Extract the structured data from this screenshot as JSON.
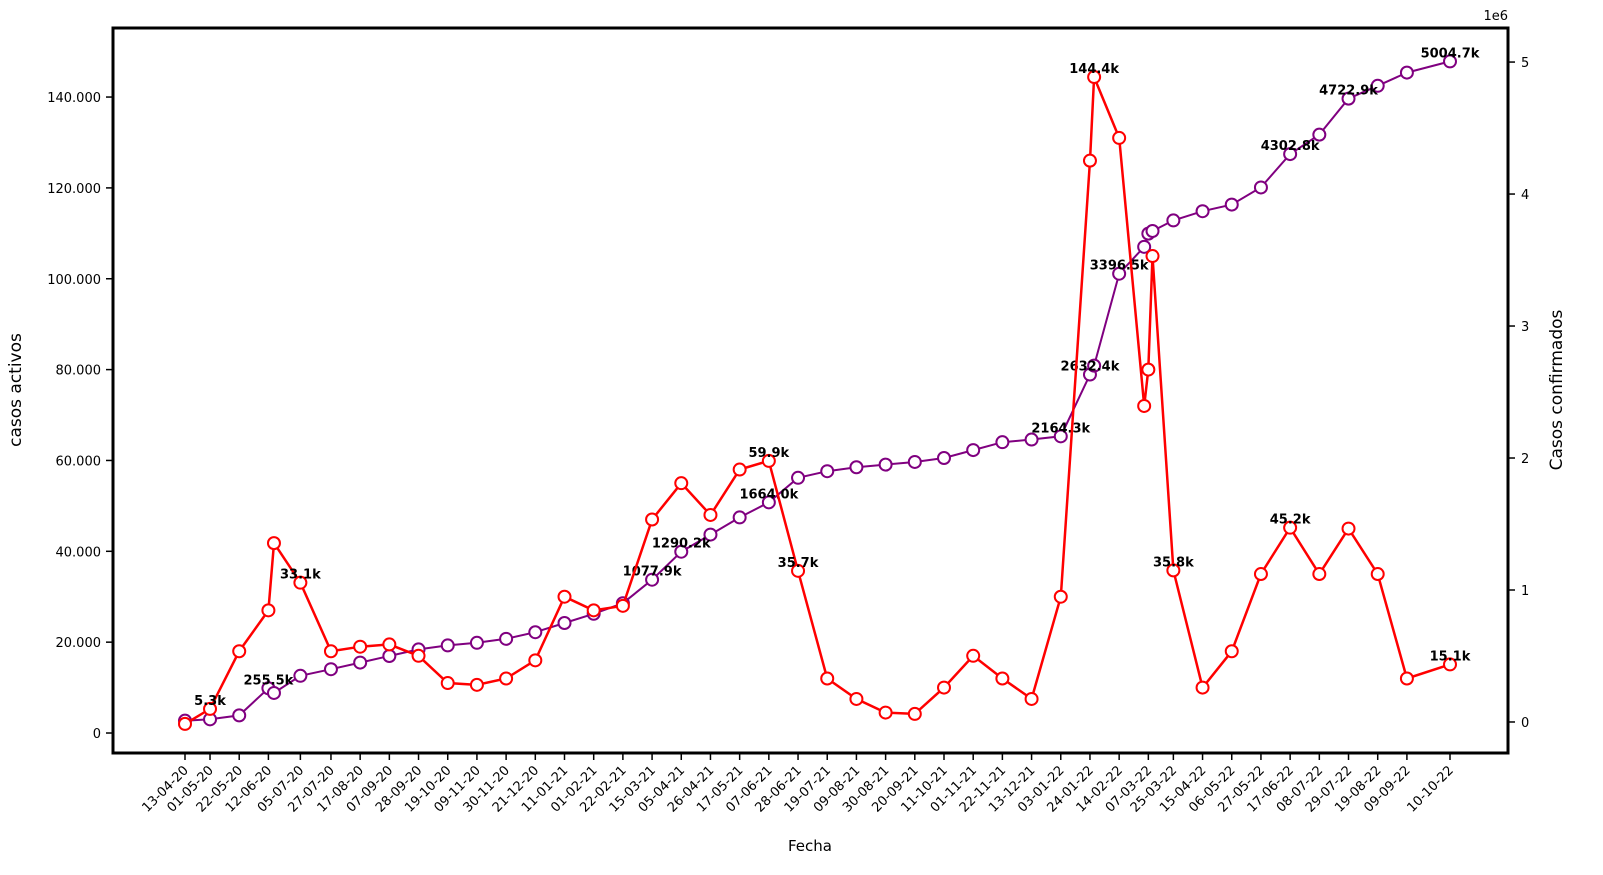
{
  "chart_data": {
    "type": "line",
    "x_label": "Fecha",
    "y_label": "casos activos",
    "y2_label": "Casos confirmados",
    "y2_offset_label": "1e6",
    "x": [
      "13-04-20",
      "01-05-20",
      "22-05-20",
      "12-06-20",
      "16-06-20",
      "05-07-20",
      "27-07-20",
      "17-08-20",
      "07-09-20",
      "28-09-20",
      "19-10-20",
      "09-11-20",
      "30-11-20",
      "21-12-20",
      "11-01-21",
      "01-02-21",
      "22-02-21",
      "15-03-21",
      "05-04-21",
      "26-04-21",
      "17-05-21",
      "07-06-21",
      "28-06-21",
      "19-07-21",
      "09-08-21",
      "30-08-21",
      "20-09-21",
      "11-10-21",
      "01-11-21",
      "22-11-21",
      "13-12-21",
      "03-01-22",
      "24-01-22",
      "27-01-22",
      "14-02-22",
      "04-03-22",
      "07-03-22",
      "10-03-22",
      "25-03-22",
      "15-04-22",
      "06-05-22",
      "27-05-22",
      "17-06-22",
      "08-07-22",
      "29-07-22",
      "19-08-22",
      "09-09-22",
      "10-10-22"
    ],
    "series": [
      {
        "name": "casos activos",
        "color": "#ff0000",
        "axis": "y",
        "values": [
          2000,
          5300,
          18000,
          27000,
          41800,
          33100,
          18000,
          19000,
          19500,
          17000,
          11000,
          10600,
          12000,
          16000,
          30000,
          27000,
          28000,
          47000,
          55000,
          48000,
          58000,
          59900,
          35700,
          12000,
          7500,
          4500,
          4200,
          10000,
          17000,
          12000,
          7500,
          30000,
          126000,
          144400,
          131000,
          72000,
          80000,
          105000,
          35800,
          10000,
          18000,
          35000,
          45200,
          35000,
          45000,
          35000,
          12000,
          15100
        ],
        "value_labels": [
          null,
          "5.3k",
          null,
          null,
          null,
          "33.1k",
          null,
          null,
          null,
          null,
          null,
          null,
          null,
          null,
          null,
          null,
          null,
          null,
          null,
          null,
          null,
          "59.9k",
          "35.7k",
          null,
          null,
          null,
          null,
          null,
          null,
          null,
          null,
          null,
          null,
          "144.4k",
          null,
          null,
          null,
          null,
          "35.8k",
          null,
          null,
          null,
          "45.2k",
          null,
          null,
          null,
          null,
          "15.1k"
        ]
      },
      {
        "name": "Casos confirmados",
        "color": "#800080",
        "axis": "y2",
        "values": [
          0.01,
          0.02,
          0.05,
          0.2555,
          0.22,
          0.35,
          0.4,
          0.45,
          0.5,
          0.55,
          0.58,
          0.6,
          0.63,
          0.68,
          0.75,
          0.82,
          0.9,
          1.0779,
          1.2902,
          1.42,
          1.55,
          1.664,
          1.85,
          1.9,
          1.93,
          1.95,
          1.97,
          2.0,
          2.06,
          2.12,
          2.14,
          2.1643,
          2.6324,
          2.7,
          3.3965,
          3.6,
          3.7,
          3.72,
          3.8,
          3.87,
          3.92,
          4.05,
          4.3028,
          4.45,
          4.7229,
          4.82,
          4.92,
          5.0047
        ],
        "value_labels": [
          null,
          null,
          null,
          "255.5k",
          null,
          null,
          null,
          null,
          null,
          null,
          null,
          null,
          null,
          null,
          null,
          null,
          null,
          "1077.9k",
          "1290.2k",
          null,
          null,
          "1664.0k",
          null,
          null,
          null,
          null,
          null,
          null,
          null,
          null,
          null,
          "2164.3k",
          "2632.4k",
          null,
          "3396.5k",
          null,
          null,
          null,
          null,
          null,
          null,
          null,
          "4302.8k",
          null,
          "4722.9k",
          null,
          null,
          "5004.7k"
        ]
      }
    ],
    "xticks": [
      "13-04-20",
      "01-05-20",
      "22-05-20",
      "12-06-20",
      "05-07-20",
      "27-07-20",
      "17-08-20",
      "07-09-20",
      "28-09-20",
      "19-10-20",
      "09-11-20",
      "30-11-20",
      "21-12-20",
      "11-01-21",
      "01-02-21",
      "22-02-21",
      "15-03-21",
      "05-04-21",
      "26-04-21",
      "17-05-21",
      "07-06-21",
      "28-06-21",
      "19-07-21",
      "09-08-21",
      "30-08-21",
      "20-09-21",
      "11-10-21",
      "01-11-21",
      "22-11-21",
      "13-12-21",
      "03-01-22",
      "24-01-22",
      "14-02-22",
      "07-03-22",
      "25-03-22",
      "15-04-22",
      "06-05-22",
      "27-05-22",
      "17-06-22",
      "08-07-22",
      "29-07-22",
      "19-08-22",
      "09-09-22",
      "10-10-22"
    ],
    "ylim": [
      -4400,
      155200
    ],
    "yticks": [
      0,
      {
        "value": 20000,
        "label": "20.000"
      },
      {
        "value": 40000,
        "label": "40.000"
      },
      {
        "value": 60000,
        "label": "60.000"
      },
      {
        "value": 80000,
        "label": "80.000"
      },
      {
        "value": 100000,
        "label": "100.000"
      },
      {
        "value": 120000,
        "label": "120.000"
      },
      {
        "value": 140000,
        "label": "140.000"
      }
    ],
    "y2lim": [
      -0.235,
      5.258
    ],
    "y2ticks": [
      0,
      1,
      2,
      3,
      4,
      5
    ],
    "grid": false
  }
}
